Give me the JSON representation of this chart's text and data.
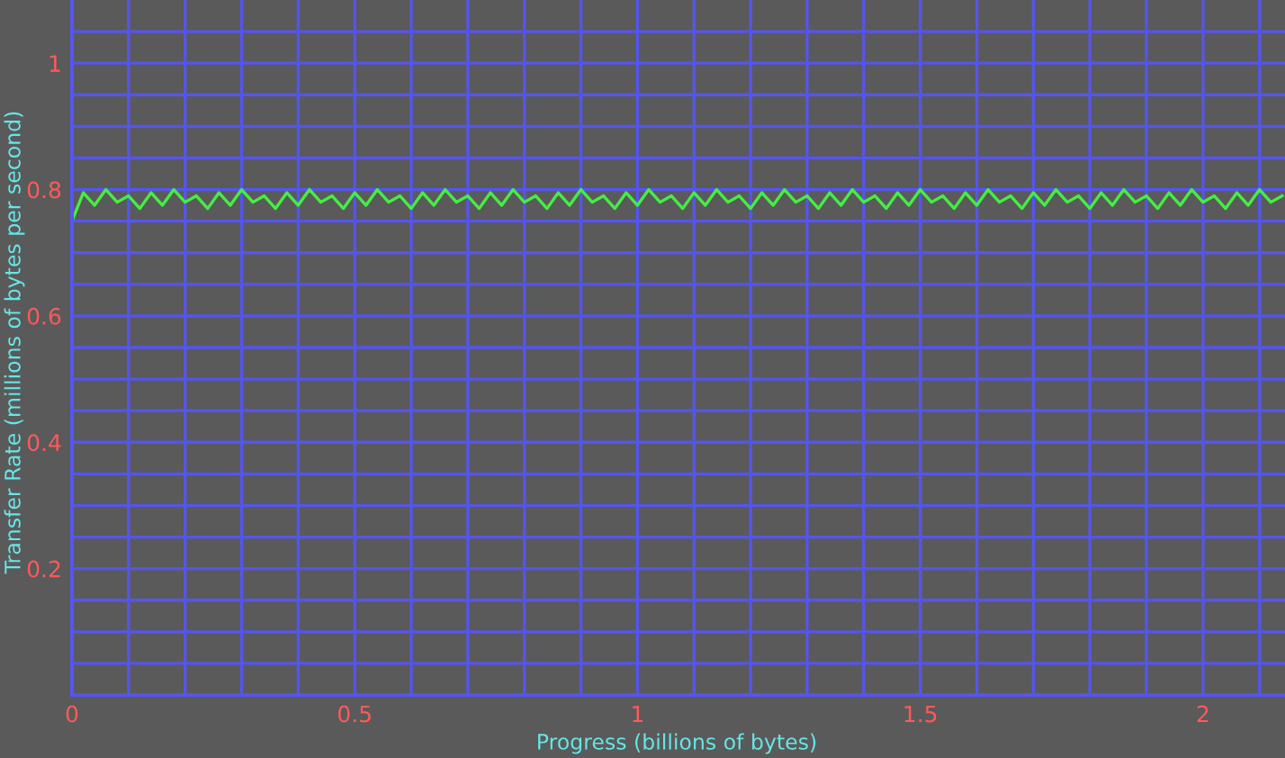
{
  "chart_data": {
    "type": "line",
    "xlabel": "Progress (billions of bytes)",
    "ylabel": "Transfer Rate (millions of bytes per second)",
    "x": [
      0,
      0.02,
      0.04,
      0.06,
      0.08,
      0.1,
      0.12,
      0.14,
      0.16,
      0.18,
      0.2,
      0.22,
      0.24,
      0.26,
      0.28,
      0.3,
      0.32,
      0.34,
      0.36,
      0.38,
      0.4,
      0.42,
      0.44,
      0.46,
      0.48,
      0.5,
      0.52,
      0.54,
      0.56,
      0.58,
      0.6,
      0.62,
      0.64,
      0.66,
      0.68,
      0.7,
      0.72,
      0.74,
      0.76,
      0.78,
      0.8,
      0.82,
      0.84,
      0.86,
      0.88,
      0.9,
      0.92,
      0.94,
      0.96,
      0.98,
      1,
      1.02,
      1.04,
      1.06,
      1.08,
      1.1,
      1.12,
      1.14,
      1.16,
      1.18,
      1.2,
      1.22,
      1.24,
      1.26,
      1.28,
      1.3,
      1.32,
      1.34,
      1.36,
      1.38,
      1.4,
      1.42,
      1.44,
      1.46,
      1.48,
      1.5,
      1.52,
      1.54,
      1.56,
      1.58,
      1.6,
      1.62,
      1.64,
      1.66,
      1.68,
      1.7,
      1.72,
      1.74,
      1.76,
      1.78,
      1.8,
      1.82,
      1.84,
      1.86,
      1.88,
      1.9,
      1.92,
      1.94,
      1.96,
      1.98,
      2,
      2.02,
      2.04,
      2.06,
      2.08,
      2.1,
      2.12,
      2.14
    ],
    "series": [
      {
        "color": "#44ee44",
        "values": [
          0.75,
          0.795,
          0.775,
          0.8,
          0.78,
          0.79,
          0.77,
          0.795,
          0.775,
          0.8,
          0.78,
          0.79,
          0.77,
          0.795,
          0.775,
          0.8,
          0.78,
          0.79,
          0.77,
          0.795,
          0.775,
          0.8,
          0.78,
          0.79,
          0.77,
          0.795,
          0.775,
          0.8,
          0.78,
          0.79,
          0.77,
          0.795,
          0.775,
          0.8,
          0.78,
          0.79,
          0.77,
          0.795,
          0.775,
          0.8,
          0.78,
          0.79,
          0.77,
          0.795,
          0.775,
          0.8,
          0.78,
          0.79,
          0.77,
          0.795,
          0.775,
          0.8,
          0.78,
          0.79,
          0.77,
          0.795,
          0.775,
          0.8,
          0.78,
          0.79,
          0.77,
          0.795,
          0.775,
          0.8,
          0.78,
          0.79,
          0.77,
          0.795,
          0.775,
          0.8,
          0.78,
          0.79,
          0.77,
          0.795,
          0.775,
          0.8,
          0.78,
          0.79,
          0.77,
          0.795,
          0.775,
          0.8,
          0.78,
          0.79,
          0.77,
          0.795,
          0.775,
          0.8,
          0.78,
          0.79,
          0.77,
          0.795,
          0.775,
          0.8,
          0.78,
          0.79,
          0.77,
          0.795,
          0.775,
          0.8,
          0.78,
          0.79,
          0.77,
          0.795,
          0.775,
          0.8,
          0.78,
          0.79
        ]
      }
    ],
    "xlim": [
      0,
      2.145
    ],
    "ylim": [
      0,
      1.1
    ],
    "xticks": [
      0,
      {
        "value": 0.1,
        "label": null
      },
      {
        "value": 0.2,
        "label": null
      },
      {
        "value": 0.3,
        "label": null
      },
      {
        "value": 0.4,
        "label": null
      },
      0.5,
      {
        "value": 0.6,
        "label": null
      },
      {
        "value": 0.7,
        "label": null
      },
      {
        "value": 0.8,
        "label": null
      },
      {
        "value": 0.9,
        "label": null
      },
      1,
      {
        "value": 1.1,
        "label": null
      },
      {
        "value": 1.2,
        "label": null
      },
      {
        "value": 1.3,
        "label": null
      },
      {
        "value": 1.4,
        "label": null
      },
      1.5,
      {
        "value": 1.6,
        "label": null
      },
      {
        "value": 1.7,
        "label": null
      },
      {
        "value": 1.8,
        "label": null
      },
      {
        "value": 1.9,
        "label": null
      },
      2,
      {
        "value": 2.1,
        "label": null
      }
    ],
    "yticks": [
      {
        "value": 0,
        "label": null
      },
      {
        "value": 0.05,
        "label": null
      },
      {
        "value": 0.1,
        "label": null
      },
      {
        "value": 0.15,
        "label": null
      },
      0.2,
      {
        "value": 0.25,
        "label": null
      },
      {
        "value": 0.3,
        "label": null
      },
      {
        "value": 0.35,
        "label": null
      },
      0.4,
      {
        "value": 0.45,
        "label": null
      },
      {
        "value": 0.5,
        "label": null
      },
      {
        "value": 0.55,
        "label": null
      },
      0.6,
      {
        "value": 0.65,
        "label": null
      },
      {
        "value": 0.7,
        "label": null
      },
      {
        "value": 0.75,
        "label": null
      },
      0.8,
      {
        "value": 0.85,
        "label": null
      },
      {
        "value": 0.9,
        "label": null
      },
      {
        "value": 0.95,
        "label": null
      },
      1,
      {
        "value": 1.05,
        "label": null
      }
    ],
    "grid": true,
    "marker": "none",
    "line_style": "solid"
  }
}
